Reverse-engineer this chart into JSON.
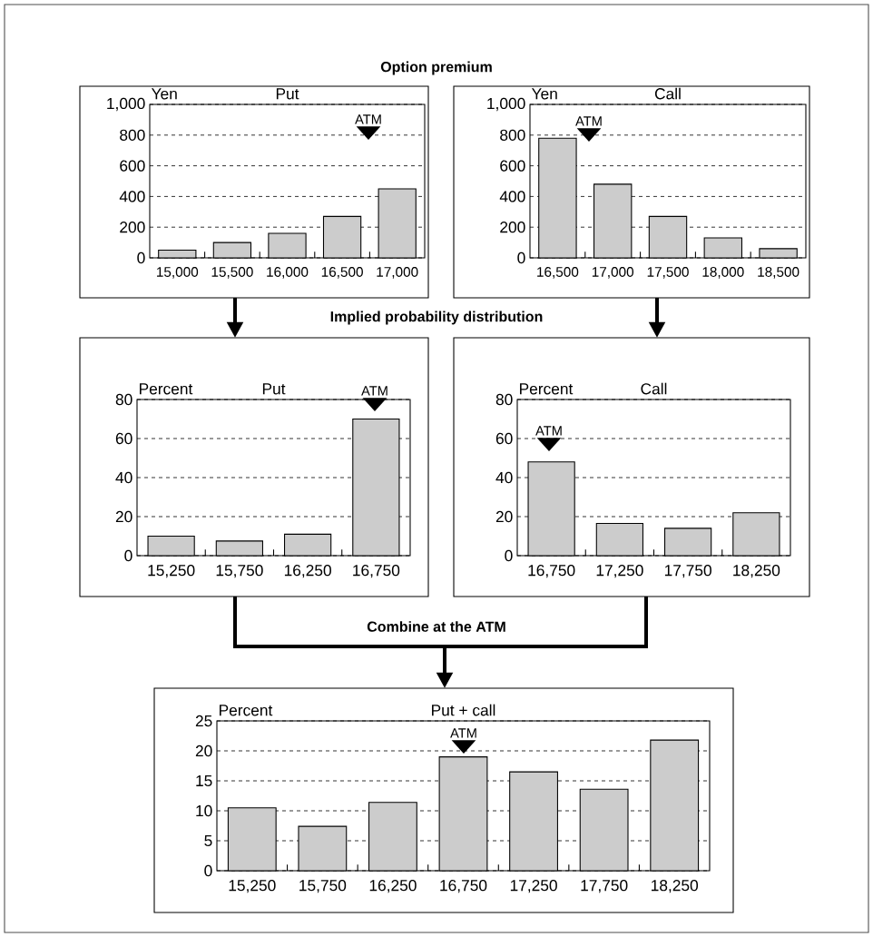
{
  "chart_data": [
    {
      "type": "bar",
      "title": "Put",
      "ylabel": "Yen",
      "categories": [
        "15,000",
        "15,500",
        "16,000",
        "16,500",
        "17,000"
      ],
      "values": [
        50,
        100,
        160,
        270,
        450
      ],
      "color": "#cccccc",
      "ylim": [
        0,
        1000
      ],
      "yticks": [
        0,
        200,
        400,
        600,
        800,
        {
          "value": 1000,
          "label": "1,000"
        }
      ],
      "grid": "y",
      "annotations": [
        "Option premium",
        "ATM"
      ]
    },
    {
      "type": "bar",
      "title": "Call",
      "ylabel": "Yen",
      "categories": [
        "16,500",
        "17,000",
        "17,500",
        "18,000",
        "18,500"
      ],
      "values": [
        780,
        480,
        270,
        130,
        60
      ],
      "color": "#cccccc",
      "ylim": [
        0,
        1000
      ],
      "yticks": [
        0,
        200,
        400,
        600,
        800,
        {
          "value": 1000,
          "label": "1,000"
        }
      ],
      "grid": "y",
      "annotations": [
        "ATM"
      ]
    },
    {
      "type": "bar",
      "title": "Put",
      "ylabel": "Percent",
      "categories": [
        "15,250",
        "15,750",
        "16,250",
        "16,750"
      ],
      "values": [
        10,
        7.5,
        11,
        70
      ],
      "color": "#cccccc",
      "ylim": [
        0,
        80
      ],
      "yticks": [
        0,
        20,
        40,
        60,
        80
      ],
      "grid": "y",
      "annotations": [
        "Implied probability distribution",
        "ATM"
      ]
    },
    {
      "type": "bar",
      "title": "Call",
      "ylabel": "Percent",
      "categories": [
        "16,750",
        "17,250",
        "17,750",
        "18,250"
      ],
      "values": [
        48,
        16.5,
        14,
        22
      ],
      "color": "#cccccc",
      "ylim": [
        0,
        80
      ],
      "yticks": [
        0,
        20,
        40,
        60,
        80
      ],
      "grid": "y",
      "annotations": [
        "ATM"
      ]
    },
    {
      "type": "bar",
      "title": "Put + call",
      "ylabel": "Percent",
      "categories": [
        "15,250",
        "15,750",
        "16,250",
        "16,750",
        "17,250",
        "17,750",
        "18,250"
      ],
      "values": [
        10.5,
        7.4,
        11.4,
        19,
        16.5,
        13.6,
        21.8
      ],
      "color": "#cccccc",
      "ylim": [
        0,
        25
      ],
      "yticks": [
        0,
        5,
        10,
        15,
        20,
        25
      ],
      "grid": "y",
      "annotations": [
        "Combine at the ATM",
        "ATM"
      ]
    }
  ]
}
